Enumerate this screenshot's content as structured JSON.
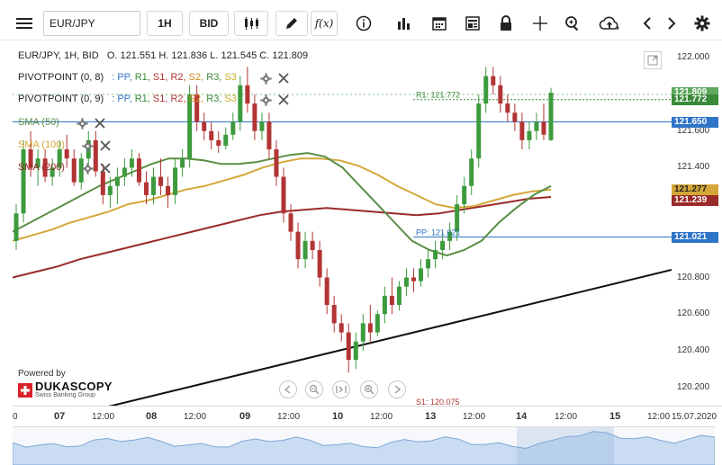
{
  "toolbar": {
    "symbol": "EUR/JPY",
    "timeframe": "1H",
    "price_type": "BID",
    "fx_label": "f(x)"
  },
  "ohlc_line": {
    "symbol": "EUR/JPY, 1H, BID",
    "open": "O. 121.551",
    "high": "H. 121.836",
    "low": "L. 121.545",
    "close": "C. 121.809"
  },
  "indicators": [
    {
      "label": "PIVOTPOINT (0, 8)",
      "items": [
        ": PP,",
        "R1,",
        "S1,",
        "R2,",
        "S2,",
        "R3,",
        "S3"
      ]
    },
    {
      "label": "PIVOTPOINT (0, 9)",
      "items": [
        ": PP,",
        "R1,",
        "S1,",
        "R2,",
        "S2,",
        "R3,",
        "S3"
      ]
    },
    {
      "label": "SMA (50)"
    },
    {
      "label": "SMA (100)"
    },
    {
      "label": "SMA (200)"
    }
  ],
  "colors": {
    "up": "#3d9a3d",
    "down": "#b23434",
    "sma50": "#5a8e44",
    "sma100": "#d4a73a",
    "sma200": "#9a2a2a",
    "pp": "#2e75c7",
    "r1": "#3a8a3a",
    "last_price": "#5ea85e",
    "trend": "#111111"
  },
  "chart_data": {
    "type": "candlestick",
    "symbol": "EUR/JPY",
    "timeframe": "1H",
    "y_ticks": [
      "122.000",
      "121.800",
      "121.600",
      "121.400",
      "121.200",
      "121.000",
      "120.800",
      "120.600",
      "120.400",
      "120.200"
    ],
    "ylim": [
      120.1,
      122.08
    ],
    "x_ticks": [
      "0",
      "07",
      "12:00",
      "08",
      "12:00",
      "09",
      "12:00",
      "10",
      "12:00",
      "13",
      "12:00",
      "14",
      "12:00",
      "15",
      "12:00",
      "15.07.2020"
    ],
    "price_labels": [
      {
        "text": "121.809",
        "value": 121.809,
        "color": "#5ea85e"
      },
      {
        "text": "121.772",
        "value": 121.772,
        "color": "#3a8a3a"
      },
      {
        "text": "121.650",
        "value": 121.65,
        "color": "#2e75c7"
      },
      {
        "text": "121.277",
        "value": 121.277,
        "color": "#d4a73a"
      },
      {
        "text": "121.239",
        "value": 121.239,
        "color": "#9a2a2a"
      },
      {
        "text": "121.021",
        "value": 121.021,
        "color": "#2e75c7"
      }
    ],
    "pivot_lines": [
      {
        "label": "R1: 121.772",
        "value": 121.772
      },
      {
        "label": "PP: 121.021",
        "value": 121.021
      },
      {
        "label": "S1: 120.075",
        "value": 120.075
      }
    ],
    "horizontal_line": 121.65,
    "candles": [
      [
        121.0,
        121.2,
        120.95,
        121.15
      ],
      [
        121.15,
        121.55,
        121.1,
        121.5
      ],
      [
        121.5,
        121.6,
        121.35,
        121.4
      ],
      [
        121.4,
        121.5,
        121.3,
        121.45
      ],
      [
        121.45,
        121.5,
        121.32,
        121.35
      ],
      [
        121.35,
        121.45,
        121.3,
        121.4
      ],
      [
        121.4,
        121.55,
        121.35,
        121.5
      ],
      [
        121.5,
        121.58,
        121.4,
        121.45
      ],
      [
        121.45,
        121.5,
        121.3,
        121.32
      ],
      [
        121.32,
        121.48,
        121.28,
        121.45
      ],
      [
        121.45,
        121.6,
        121.4,
        121.55
      ],
      [
        121.55,
        121.6,
        121.35,
        121.38
      ],
      [
        121.38,
        121.42,
        121.2,
        121.25
      ],
      [
        121.25,
        121.35,
        121.18,
        121.3
      ],
      [
        121.3,
        121.4,
        121.2,
        121.35
      ],
      [
        121.35,
        121.45,
        121.3,
        121.4
      ],
      [
        121.4,
        121.5,
        121.35,
        121.45
      ],
      [
        121.45,
        121.48,
        121.3,
        121.32
      ],
      [
        121.32,
        121.38,
        121.2,
        121.25
      ],
      [
        121.25,
        121.4,
        121.2,
        121.35
      ],
      [
        121.35,
        121.45,
        121.25,
        121.3
      ],
      [
        121.3,
        121.35,
        121.18,
        121.25
      ],
      [
        121.25,
        121.45,
        121.2,
        121.4
      ],
      [
        121.4,
        121.5,
        121.35,
        121.45
      ],
      [
        121.45,
        121.85,
        121.4,
        121.8
      ],
      [
        121.8,
        121.85,
        121.6,
        121.65
      ],
      [
        121.65,
        121.7,
        121.55,
        121.6
      ],
      [
        121.6,
        121.65,
        121.5,
        121.55
      ],
      [
        121.55,
        121.6,
        121.48,
        121.52
      ],
      [
        121.52,
        121.62,
        121.5,
        121.58
      ],
      [
        121.58,
        121.7,
        121.55,
        121.65
      ],
      [
        121.65,
        121.9,
        121.6,
        121.85
      ],
      [
        121.85,
        121.95,
        121.7,
        121.75
      ],
      [
        121.75,
        121.8,
        121.55,
        121.6
      ],
      [
        121.6,
        121.7,
        121.55,
        121.65
      ],
      [
        121.65,
        121.7,
        121.45,
        121.5
      ],
      [
        121.5,
        121.55,
        121.3,
        121.35
      ],
      [
        121.35,
        121.4,
        121.1,
        121.15
      ],
      [
        121.15,
        121.2,
        121.0,
        121.05
      ],
      [
        121.05,
        121.1,
        120.85,
        120.9
      ],
      [
        120.9,
        121.05,
        120.85,
        121.0
      ],
      [
        121.0,
        121.05,
        120.9,
        120.95
      ],
      [
        120.95,
        121.0,
        120.75,
        120.8
      ],
      [
        120.8,
        120.85,
        120.6,
        120.65
      ],
      [
        120.65,
        120.7,
        120.5,
        120.55
      ],
      [
        120.55,
        120.6,
        120.45,
        120.5
      ],
      [
        120.5,
        120.55,
        120.28,
        120.35
      ],
      [
        120.35,
        120.5,
        120.3,
        120.45
      ],
      [
        120.45,
        120.6,
        120.4,
        120.55
      ],
      [
        120.55,
        120.65,
        120.45,
        120.5
      ],
      [
        120.5,
        120.62,
        120.48,
        120.6
      ],
      [
        120.6,
        120.75,
        120.55,
        120.7
      ],
      [
        120.7,
        120.8,
        120.6,
        120.65
      ],
      [
        120.65,
        120.78,
        120.62,
        120.75
      ],
      [
        120.75,
        120.85,
        120.7,
        120.8
      ],
      [
        120.8,
        120.85,
        120.72,
        120.78
      ],
      [
        120.78,
        120.9,
        120.75,
        120.85
      ],
      [
        120.85,
        120.95,
        120.8,
        120.9
      ],
      [
        120.9,
        121.0,
        120.85,
        120.95
      ],
      [
        120.95,
        121.05,
        120.9,
        121.0
      ],
      [
        121.0,
        121.1,
        120.95,
        121.05
      ],
      [
        121.05,
        121.25,
        121.0,
        121.2
      ],
      [
        121.2,
        121.35,
        121.15,
        121.3
      ],
      [
        121.3,
        121.5,
        121.25,
        121.45
      ],
      [
        121.45,
        121.8,
        121.4,
        121.75
      ],
      [
        121.75,
        121.95,
        121.7,
        121.9
      ],
      [
        121.9,
        121.95,
        121.8,
        121.85
      ],
      [
        121.85,
        121.9,
        121.7,
        121.75
      ],
      [
        121.75,
        121.8,
        121.65,
        121.7
      ],
      [
        121.7,
        121.75,
        121.6,
        121.65
      ],
      [
        121.65,
        121.7,
        121.5,
        121.55
      ],
      [
        121.55,
        121.65,
        121.5,
        121.6
      ],
      [
        121.6,
        121.7,
        121.55,
        121.65
      ],
      [
        121.65,
        121.75,
        121.55,
        121.58
      ],
      [
        121.551,
        121.836,
        121.545,
        121.809
      ]
    ],
    "sma50": [
      121.05,
      121.1,
      121.15,
      121.2,
      121.25,
      121.3,
      121.34,
      121.38,
      121.42,
      121.45,
      121.45,
      121.44,
      121.42,
      121.42,
      121.43,
      121.45,
      121.47,
      121.48,
      121.46,
      121.4,
      121.3,
      121.2,
      121.1,
      121.0,
      120.95,
      120.92,
      120.95,
      121.0,
      121.1,
      121.18,
      121.25,
      121.3
    ],
    "sma100": [
      121.0,
      121.03,
      121.06,
      121.1,
      121.13,
      121.16,
      121.2,
      121.22,
      121.25,
      121.28,
      121.3,
      121.33,
      121.36,
      121.4,
      121.43,
      121.45,
      121.45,
      121.44,
      121.41,
      121.36,
      121.3,
      121.25,
      121.2,
      121.18,
      121.19,
      121.22,
      121.25,
      121.27,
      121.28
    ],
    "sma200": [
      120.8,
      120.83,
      120.86,
      120.9,
      120.93,
      120.96,
      120.99,
      121.02,
      121.05,
      121.08,
      121.11,
      121.14,
      121.16,
      121.17,
      121.18,
      121.17,
      121.16,
      121.15,
      121.14,
      121.15,
      121.17,
      121.19,
      121.21,
      121.23,
      121.24
    ]
  },
  "brand": {
    "powered_by": "Powered by",
    "name": "DUKASCOPY",
    "tagline": "Swiss Banking Group"
  }
}
